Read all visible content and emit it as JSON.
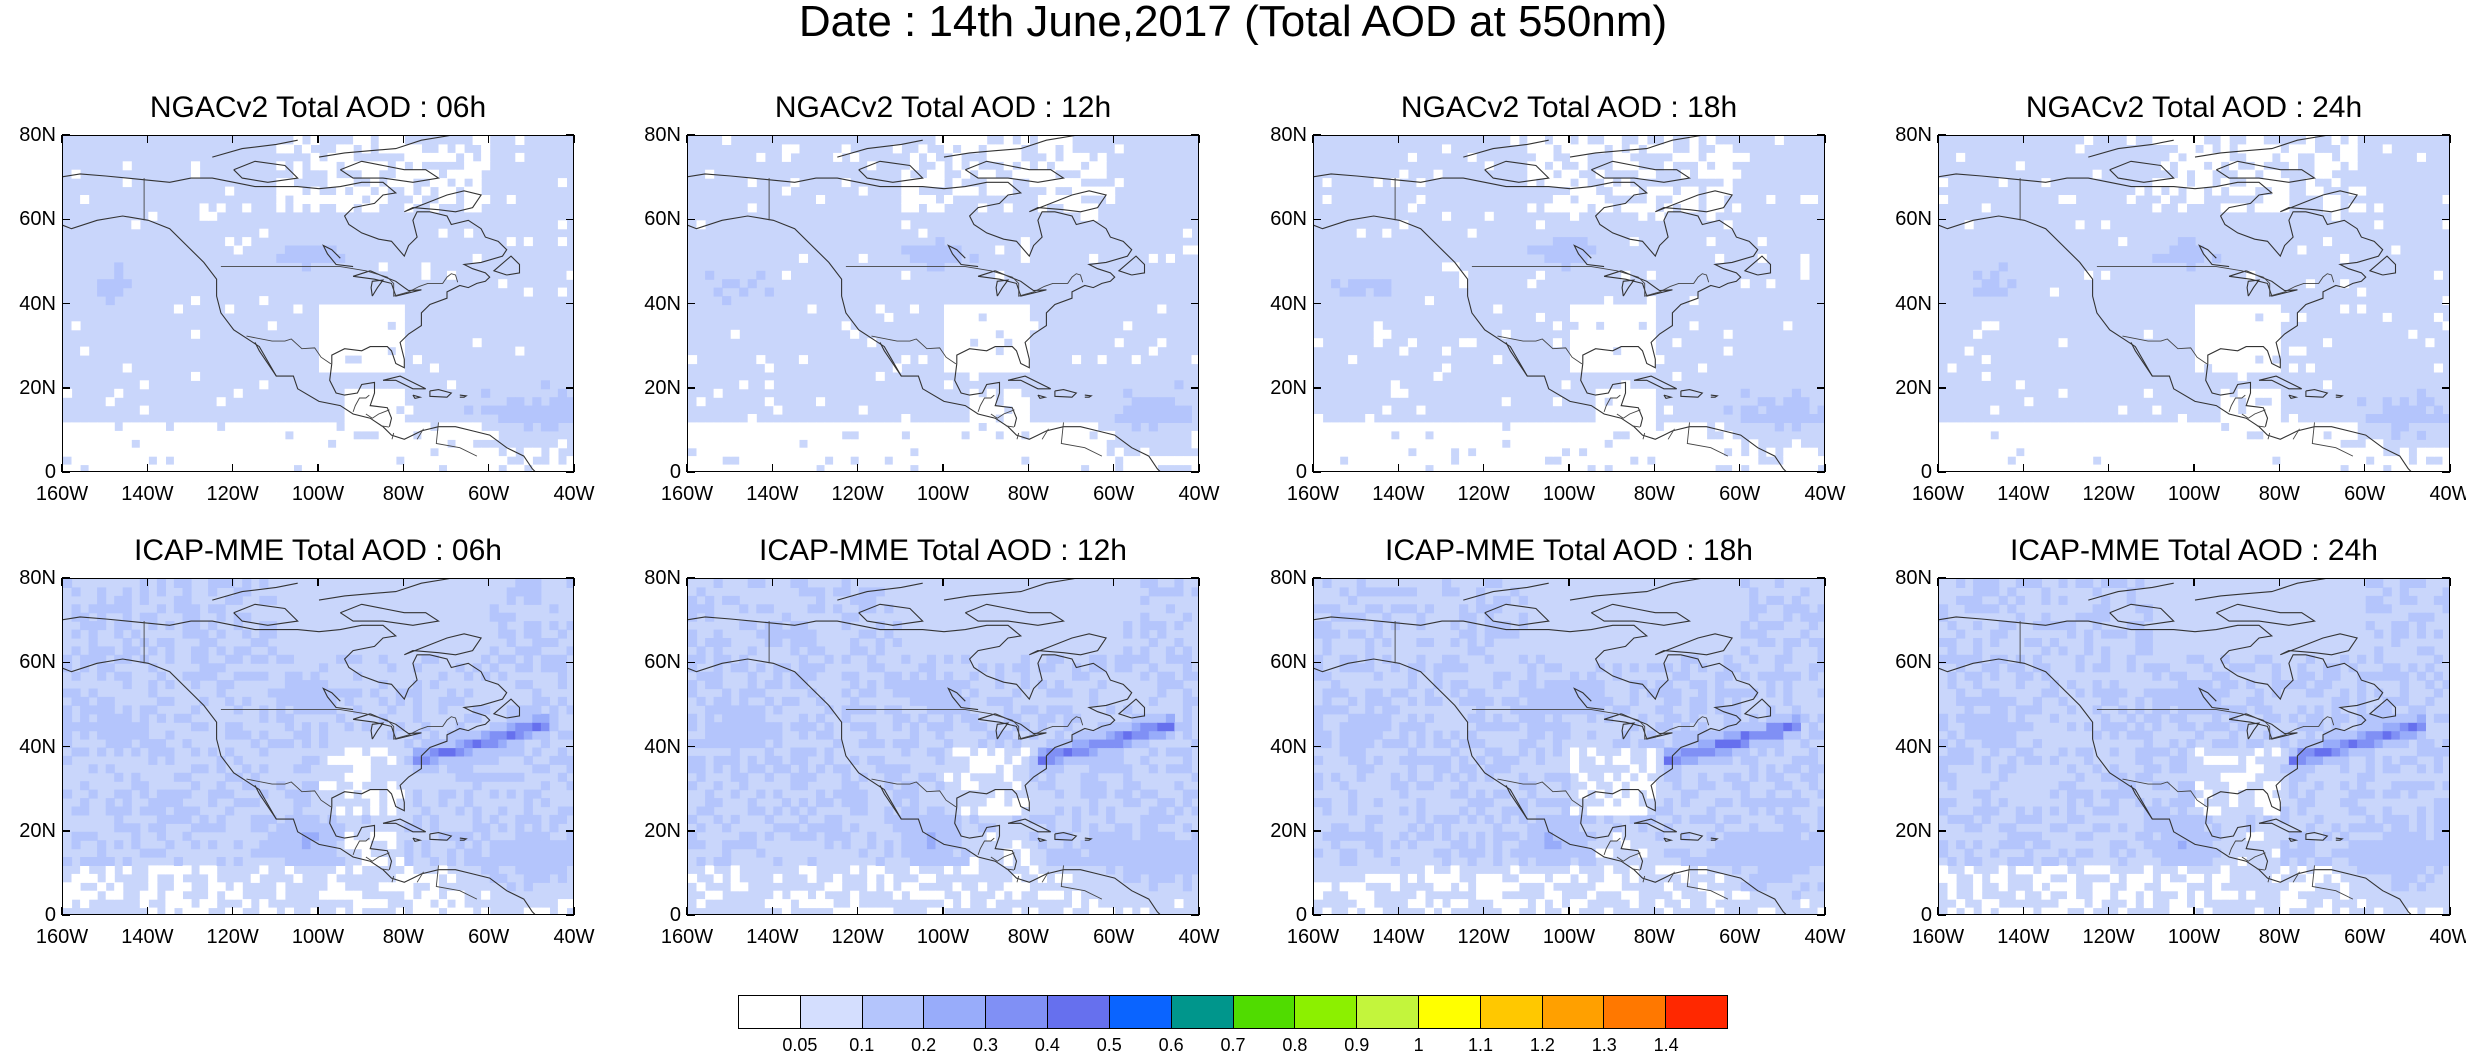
{
  "title": "Date : 14th June,2017 (Total AOD at 550nm)",
  "panels": [
    {
      "title": "NGACv2 Total AOD : 06h",
      "plume": false
    },
    {
      "title": "NGACv2 Total AOD : 12h",
      "plume": false
    },
    {
      "title": "NGACv2 Total AOD : 18h",
      "plume": false
    },
    {
      "title": "NGACv2 Total AOD : 24h",
      "plume": false
    },
    {
      "title": "ICAP-MME Total AOD : 06h",
      "plume": true
    },
    {
      "title": "ICAP-MME Total AOD : 12h",
      "plume": true
    },
    {
      "title": "ICAP-MME Total AOD : 18h",
      "plume": true
    },
    {
      "title": "ICAP-MME Total AOD : 24h",
      "plume": true
    }
  ],
  "axes": {
    "lat_labels": [
      "80N",
      "60N",
      "40N",
      "20N",
      "0"
    ],
    "lon_labels": [
      "160W",
      "140W",
      "120W",
      "100W",
      "80W",
      "60W",
      "40W"
    ],
    "lat_range": [
      0,
      80
    ],
    "lon_range": [
      -160,
      -40
    ]
  },
  "colorbar": {
    "labels": [
      "0.05",
      "0.1",
      "0.2",
      "0.3",
      "0.4",
      "0.5",
      "0.6",
      "0.7",
      "0.8",
      "0.9",
      "1",
      "1.1",
      "1.2",
      "1.3",
      "1.4"
    ],
    "colors": [
      "#ffffff",
      "#d4defe",
      "#b4c5fc",
      "#98acfa",
      "#8090f5",
      "#6670ee",
      "#0a64ff",
      "#00968c",
      "#50dc00",
      "#8cf000",
      "#c3f53c",
      "#ffff00",
      "#ffc800",
      "#ffa000",
      "#ff7800",
      "#ff2800"
    ]
  }
}
